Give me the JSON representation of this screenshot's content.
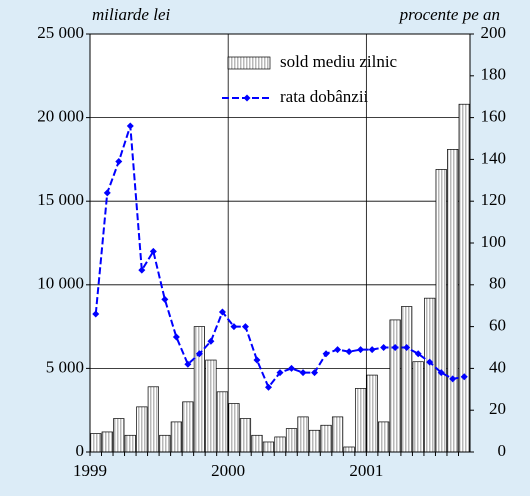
{
  "chart_data": {
    "type": "bar_line",
    "y_label": "miliarde lei",
    "y2_label": "procente pe an",
    "categories": [
      "1999",
      null,
      null,
      null,
      null,
      null,
      null,
      null,
      null,
      null,
      null,
      null,
      "2000",
      null,
      null,
      null,
      null,
      null,
      null,
      null,
      null,
      null,
      null,
      null,
      "2001",
      null,
      null,
      null,
      null,
      null,
      null,
      null,
      null
    ],
    "series": [
      {
        "name": "sold mediu zilnic",
        "color": "#d9d9d9",
        "axis": "y",
        "values": [
          1100,
          1200,
          2000,
          1000,
          2700,
          3900,
          1000,
          1800,
          3000,
          7500,
          5500,
          3600,
          2900,
          2000,
          1000,
          600,
          900,
          1400,
          2100,
          1300,
          1600,
          2100,
          300,
          3800,
          4600,
          1800,
          7900,
          8700,
          5400,
          9200,
          16900,
          18100,
          20800
        ]
      },
      {
        "name": "rata dobânzii",
        "color": "#0000ff",
        "axis": "y2",
        "values": [
          66,
          124,
          139,
          156,
          87,
          96,
          73,
          55,
          42,
          47,
          53,
          67,
          60,
          60,
          44,
          31,
          38,
          40,
          38,
          38,
          47,
          49,
          48,
          49,
          49,
          50,
          50,
          50,
          47,
          43,
          38,
          35,
          36
        ]
      }
    ],
    "ylim": [
      0,
      25000
    ],
    "yticks": [
      {
        "value": 0,
        "label": "0"
      },
      {
        "value": 5000,
        "label": "5 000"
      },
      {
        "value": 10000,
        "label": "10 000"
      },
      {
        "value": 15000,
        "label": "15 000"
      },
      {
        "value": 20000,
        "label": "20 000"
      },
      {
        "value": 25000,
        "label": "25 000"
      }
    ],
    "y2lim": [
      0,
      200
    ],
    "y2ticks": [
      0,
      20,
      40,
      60,
      80,
      100,
      120,
      140,
      160,
      180,
      200
    ],
    "grid": true
  }
}
